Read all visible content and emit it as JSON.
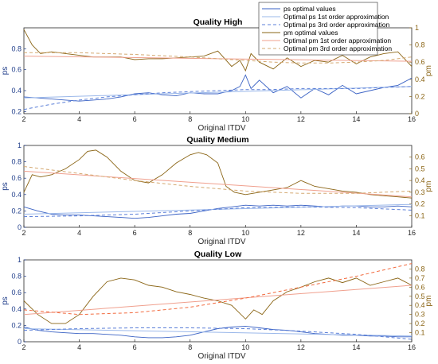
{
  "colors": {
    "ps": "#3a62c4",
    "ps_fit1": "#9bb8ea",
    "ps_fit3": "#5b7fd8",
    "pm": "#8a6414",
    "pm_fit1": "#f0a08e",
    "pm_fit3": "#d4a870",
    "pm_fit3_low": "#f26a3e",
    "axis": "#262626",
    "tick_left": "#1f3d8a",
    "tick_right": "#8a6414"
  },
  "legend": {
    "entries": [
      "ps optimal values",
      "Optimal ps 1st order approximation",
      "Optimal ps 3rd order approximation",
      "pm optimal values",
      "Optimal pm 1st order approximation",
      "Optimal pm 3rd order approximation"
    ]
  },
  "chart_data": [
    {
      "type": "line",
      "title": "Quality High",
      "xlabel": "Original ITDV",
      "ylabel_left": "ps",
      "ylabel_right": "pm",
      "xlim": [
        2,
        16
      ],
      "ylim_left": [
        0.18,
        1.0
      ],
      "ylim_right": [
        0,
        1
      ],
      "xticks": [
        "2",
        "4",
        "6",
        "8",
        "10",
        "12",
        "14",
        "16"
      ],
      "yticks_left": [
        "0.2",
        "0.4",
        "0.6",
        "0.8"
      ],
      "yticks_right": [
        "0",
        "0.2",
        "0.4",
        "0.6",
        "0.8",
        "1"
      ],
      "series": [
        {
          "key": "ps",
          "axis": "left",
          "style": "solid",
          "x": [
            2,
            2.5,
            3,
            3.5,
            4,
            4.5,
            5,
            5.5,
            6,
            6.5,
            7,
            7.5,
            8,
            8.5,
            9,
            9.5,
            9.8,
            10,
            10.2,
            10.5,
            11,
            11.5,
            12,
            12.5,
            13,
            13.5,
            14,
            14.5,
            15,
            15.5,
            16
          ],
          "y": [
            0.34,
            0.33,
            0.32,
            0.31,
            0.3,
            0.31,
            0.32,
            0.34,
            0.37,
            0.38,
            0.36,
            0.35,
            0.38,
            0.37,
            0.37,
            0.4,
            0.44,
            0.55,
            0.42,
            0.5,
            0.38,
            0.44,
            0.33,
            0.42,
            0.36,
            0.45,
            0.37,
            0.4,
            0.43,
            0.45,
            0.52
          ]
        },
        {
          "key": "ps_fit1",
          "axis": "left",
          "style": "solid",
          "x": [
            2,
            16
          ],
          "y": [
            0.33,
            0.44
          ]
        },
        {
          "key": "ps_fit3",
          "axis": "left",
          "style": "dashed",
          "x": [
            2,
            3,
            4,
            5,
            6,
            7,
            8,
            9,
            10,
            11,
            12,
            13,
            14,
            15,
            16
          ],
          "y": [
            0.22,
            0.27,
            0.31,
            0.34,
            0.36,
            0.38,
            0.39,
            0.4,
            0.41,
            0.41,
            0.42,
            0.42,
            0.42,
            0.43,
            0.44
          ]
        },
        {
          "key": "pm",
          "axis": "right",
          "style": "solid",
          "x": [
            2,
            2.3,
            2.6,
            3,
            3.5,
            4,
            4.5,
            5,
            5.5,
            6,
            6.5,
            7,
            7.5,
            8,
            8.5,
            9,
            9.5,
            9.8,
            10,
            10.2,
            10.5,
            11,
            11.5,
            12,
            12.5,
            13,
            13.5,
            14,
            14.5,
            15,
            15.5,
            16
          ],
          "y": [
            0.98,
            0.8,
            0.7,
            0.72,
            0.7,
            0.68,
            0.66,
            0.66,
            0.66,
            0.63,
            0.64,
            0.64,
            0.65,
            0.66,
            0.67,
            0.73,
            0.55,
            0.62,
            0.5,
            0.7,
            0.6,
            0.52,
            0.65,
            0.55,
            0.62,
            0.6,
            0.68,
            0.58,
            0.66,
            0.7,
            0.72,
            0.55
          ]
        },
        {
          "key": "pm_fit1",
          "axis": "right",
          "style": "solid",
          "x": [
            2,
            16
          ],
          "y": [
            0.67,
            0.61
          ]
        },
        {
          "key": "pm_fit3",
          "axis": "right",
          "style": "dashed",
          "x": [
            2,
            4,
            6,
            8,
            9,
            10,
            11,
            12,
            13,
            14,
            15,
            16
          ],
          "y": [
            0.71,
            0.71,
            0.69,
            0.66,
            0.64,
            0.62,
            0.6,
            0.59,
            0.59,
            0.6,
            0.62,
            0.66
          ]
        }
      ]
    },
    {
      "type": "line",
      "title": "Quality Medium",
      "xlabel": "Original ITDV",
      "ylabel_left": "ps",
      "ylabel_right": "pm",
      "xlim": [
        2,
        16
      ],
      "ylim_left": [
        0,
        1
      ],
      "ylim_right": [
        0,
        0.7
      ],
      "xticks": [
        "2",
        "4",
        "6",
        "8",
        "10",
        "12",
        "14",
        "16"
      ],
      "yticks_left": [
        "0",
        "0.2",
        "0.4",
        "0.6",
        "0.8",
        "1"
      ],
      "yticks_right": [
        "0.1",
        "0.2",
        "0.3",
        "0.4",
        "0.5",
        "0.6"
      ],
      "series": [
        {
          "key": "ps",
          "axis": "left",
          "style": "solid",
          "x": [
            2,
            2.5,
            3,
            3.5,
            4,
            4.5,
            5,
            5.5,
            6,
            6.5,
            7,
            7.5,
            8,
            8.5,
            9,
            9.5,
            10,
            10.5,
            11,
            11.5,
            12,
            12.5,
            13,
            13.5,
            14,
            14.5,
            15,
            15.5,
            16
          ],
          "y": [
            0.25,
            0.2,
            0.16,
            0.15,
            0.15,
            0.14,
            0.13,
            0.12,
            0.11,
            0.12,
            0.14,
            0.16,
            0.17,
            0.2,
            0.23,
            0.25,
            0.27,
            0.26,
            0.27,
            0.26,
            0.27,
            0.26,
            0.25,
            0.26,
            0.26,
            0.25,
            0.25,
            0.26,
            0.25
          ]
        },
        {
          "key": "ps_fit1",
          "axis": "left",
          "style": "solid",
          "x": [
            2,
            16
          ],
          "y": [
            0.16,
            0.28
          ]
        },
        {
          "key": "ps_fit3",
          "axis": "left",
          "style": "dashed",
          "x": [
            2,
            4,
            6,
            8,
            10,
            12,
            14,
            16
          ],
          "y": [
            0.13,
            0.14,
            0.16,
            0.2,
            0.24,
            0.25,
            0.24,
            0.21
          ]
        },
        {
          "key": "pm",
          "axis": "right",
          "style": "solid",
          "x": [
            2,
            2.3,
            2.6,
            3,
            3.5,
            4,
            4.3,
            4.6,
            5,
            5.5,
            6,
            6.5,
            7,
            7.5,
            8,
            8.3,
            8.6,
            9,
            9.3,
            9.6,
            10,
            10.5,
            11,
            11.5,
            12,
            12.2,
            12.5,
            13,
            13.5,
            14,
            14.5,
            15,
            15.5,
            16
          ],
          "y": [
            0.3,
            0.45,
            0.43,
            0.45,
            0.5,
            0.58,
            0.65,
            0.66,
            0.6,
            0.48,
            0.4,
            0.38,
            0.45,
            0.55,
            0.62,
            0.64,
            0.62,
            0.55,
            0.35,
            0.3,
            0.28,
            0.3,
            0.32,
            0.34,
            0.4,
            0.38,
            0.35,
            0.33,
            0.31,
            0.3,
            0.28,
            0.27,
            0.26,
            0.25
          ]
        },
        {
          "key": "pm_fit1",
          "axis": "right",
          "style": "solid",
          "x": [
            2,
            16
          ],
          "y": [
            0.48,
            0.26
          ]
        },
        {
          "key": "pm_fit3",
          "axis": "right",
          "style": "dashed",
          "x": [
            2,
            4,
            6,
            8,
            10,
            12,
            14,
            16
          ],
          "y": [
            0.52,
            0.46,
            0.4,
            0.35,
            0.31,
            0.29,
            0.29,
            0.31
          ]
        }
      ]
    },
    {
      "type": "line",
      "title": "Quality Low",
      "xlabel": "Original ITDV",
      "ylabel_left": "ps",
      "ylabel_right": "pm",
      "xlim": [
        2,
        16
      ],
      "ylim_left": [
        0,
        1
      ],
      "ylim_right": [
        0,
        0.9
      ],
      "xticks": [
        "2",
        "4",
        "6",
        "8",
        "10",
        "12",
        "14",
        "16"
      ],
      "yticks_left": [
        "0",
        "0.2",
        "0.4",
        "0.6",
        "0.8",
        "1"
      ],
      "yticks_right": [
        "0.1",
        "0.2",
        "0.3",
        "0.4",
        "0.5",
        "0.6",
        "0.7",
        "0.8"
      ],
      "series": [
        {
          "key": "ps",
          "axis": "left",
          "style": "solid",
          "x": [
            2,
            2.5,
            3,
            3.5,
            4,
            4.5,
            5,
            5.5,
            6,
            6.5,
            7,
            7.5,
            8,
            8.5,
            9,
            9.5,
            10,
            10.5,
            11,
            11.5,
            12,
            12.5,
            13,
            13.5,
            14,
            14.5,
            15,
            15.5,
            16
          ],
          "y": [
            0.18,
            0.14,
            0.12,
            0.11,
            0.1,
            0.1,
            0.09,
            0.08,
            0.06,
            0.05,
            0.05,
            0.06,
            0.08,
            0.12,
            0.16,
            0.18,
            0.19,
            0.17,
            0.15,
            0.14,
            0.12,
            0.1,
            0.09,
            0.08,
            0.08,
            0.07,
            0.07,
            0.06,
            0.06
          ]
        },
        {
          "key": "ps_fit1",
          "axis": "left",
          "style": "solid",
          "x": [
            2,
            16
          ],
          "y": [
            0.16,
            0.07
          ]
        },
        {
          "key": "ps_fit3",
          "axis": "left",
          "style": "dashed",
          "x": [
            2,
            4,
            6,
            8,
            10,
            12,
            14,
            16
          ],
          "y": [
            0.14,
            0.16,
            0.17,
            0.17,
            0.16,
            0.13,
            0.09,
            0.03
          ]
        },
        {
          "key": "pm",
          "axis": "right",
          "style": "solid",
          "x": [
            2,
            2.5,
            3,
            3.5,
            4,
            4.5,
            5,
            5.5,
            6,
            6.5,
            7,
            7.5,
            8,
            8.5,
            9,
            9.5,
            10,
            10.3,
            10.6,
            11,
            11.5,
            12,
            12.5,
            13,
            13.5,
            14,
            14.5,
            15,
            15.5,
            16
          ],
          "y": [
            0.45,
            0.3,
            0.2,
            0.2,
            0.3,
            0.5,
            0.66,
            0.7,
            0.68,
            0.62,
            0.6,
            0.55,
            0.52,
            0.48,
            0.45,
            0.4,
            0.25,
            0.35,
            0.3,
            0.45,
            0.55,
            0.6,
            0.66,
            0.7,
            0.65,
            0.7,
            0.62,
            0.66,
            0.7,
            0.62
          ]
        },
        {
          "key": "pm_fit1",
          "axis": "right",
          "style": "solid",
          "x": [
            2,
            16
          ],
          "y": [
            0.3,
            0.62
          ]
        },
        {
          "key": "pm_fit3_low",
          "axis": "right",
          "style": "dashed",
          "x": [
            2,
            4,
            6,
            8,
            10,
            12,
            14,
            16
          ],
          "y": [
            0.35,
            0.3,
            0.32,
            0.38,
            0.48,
            0.6,
            0.72,
            0.86
          ]
        }
      ]
    }
  ]
}
